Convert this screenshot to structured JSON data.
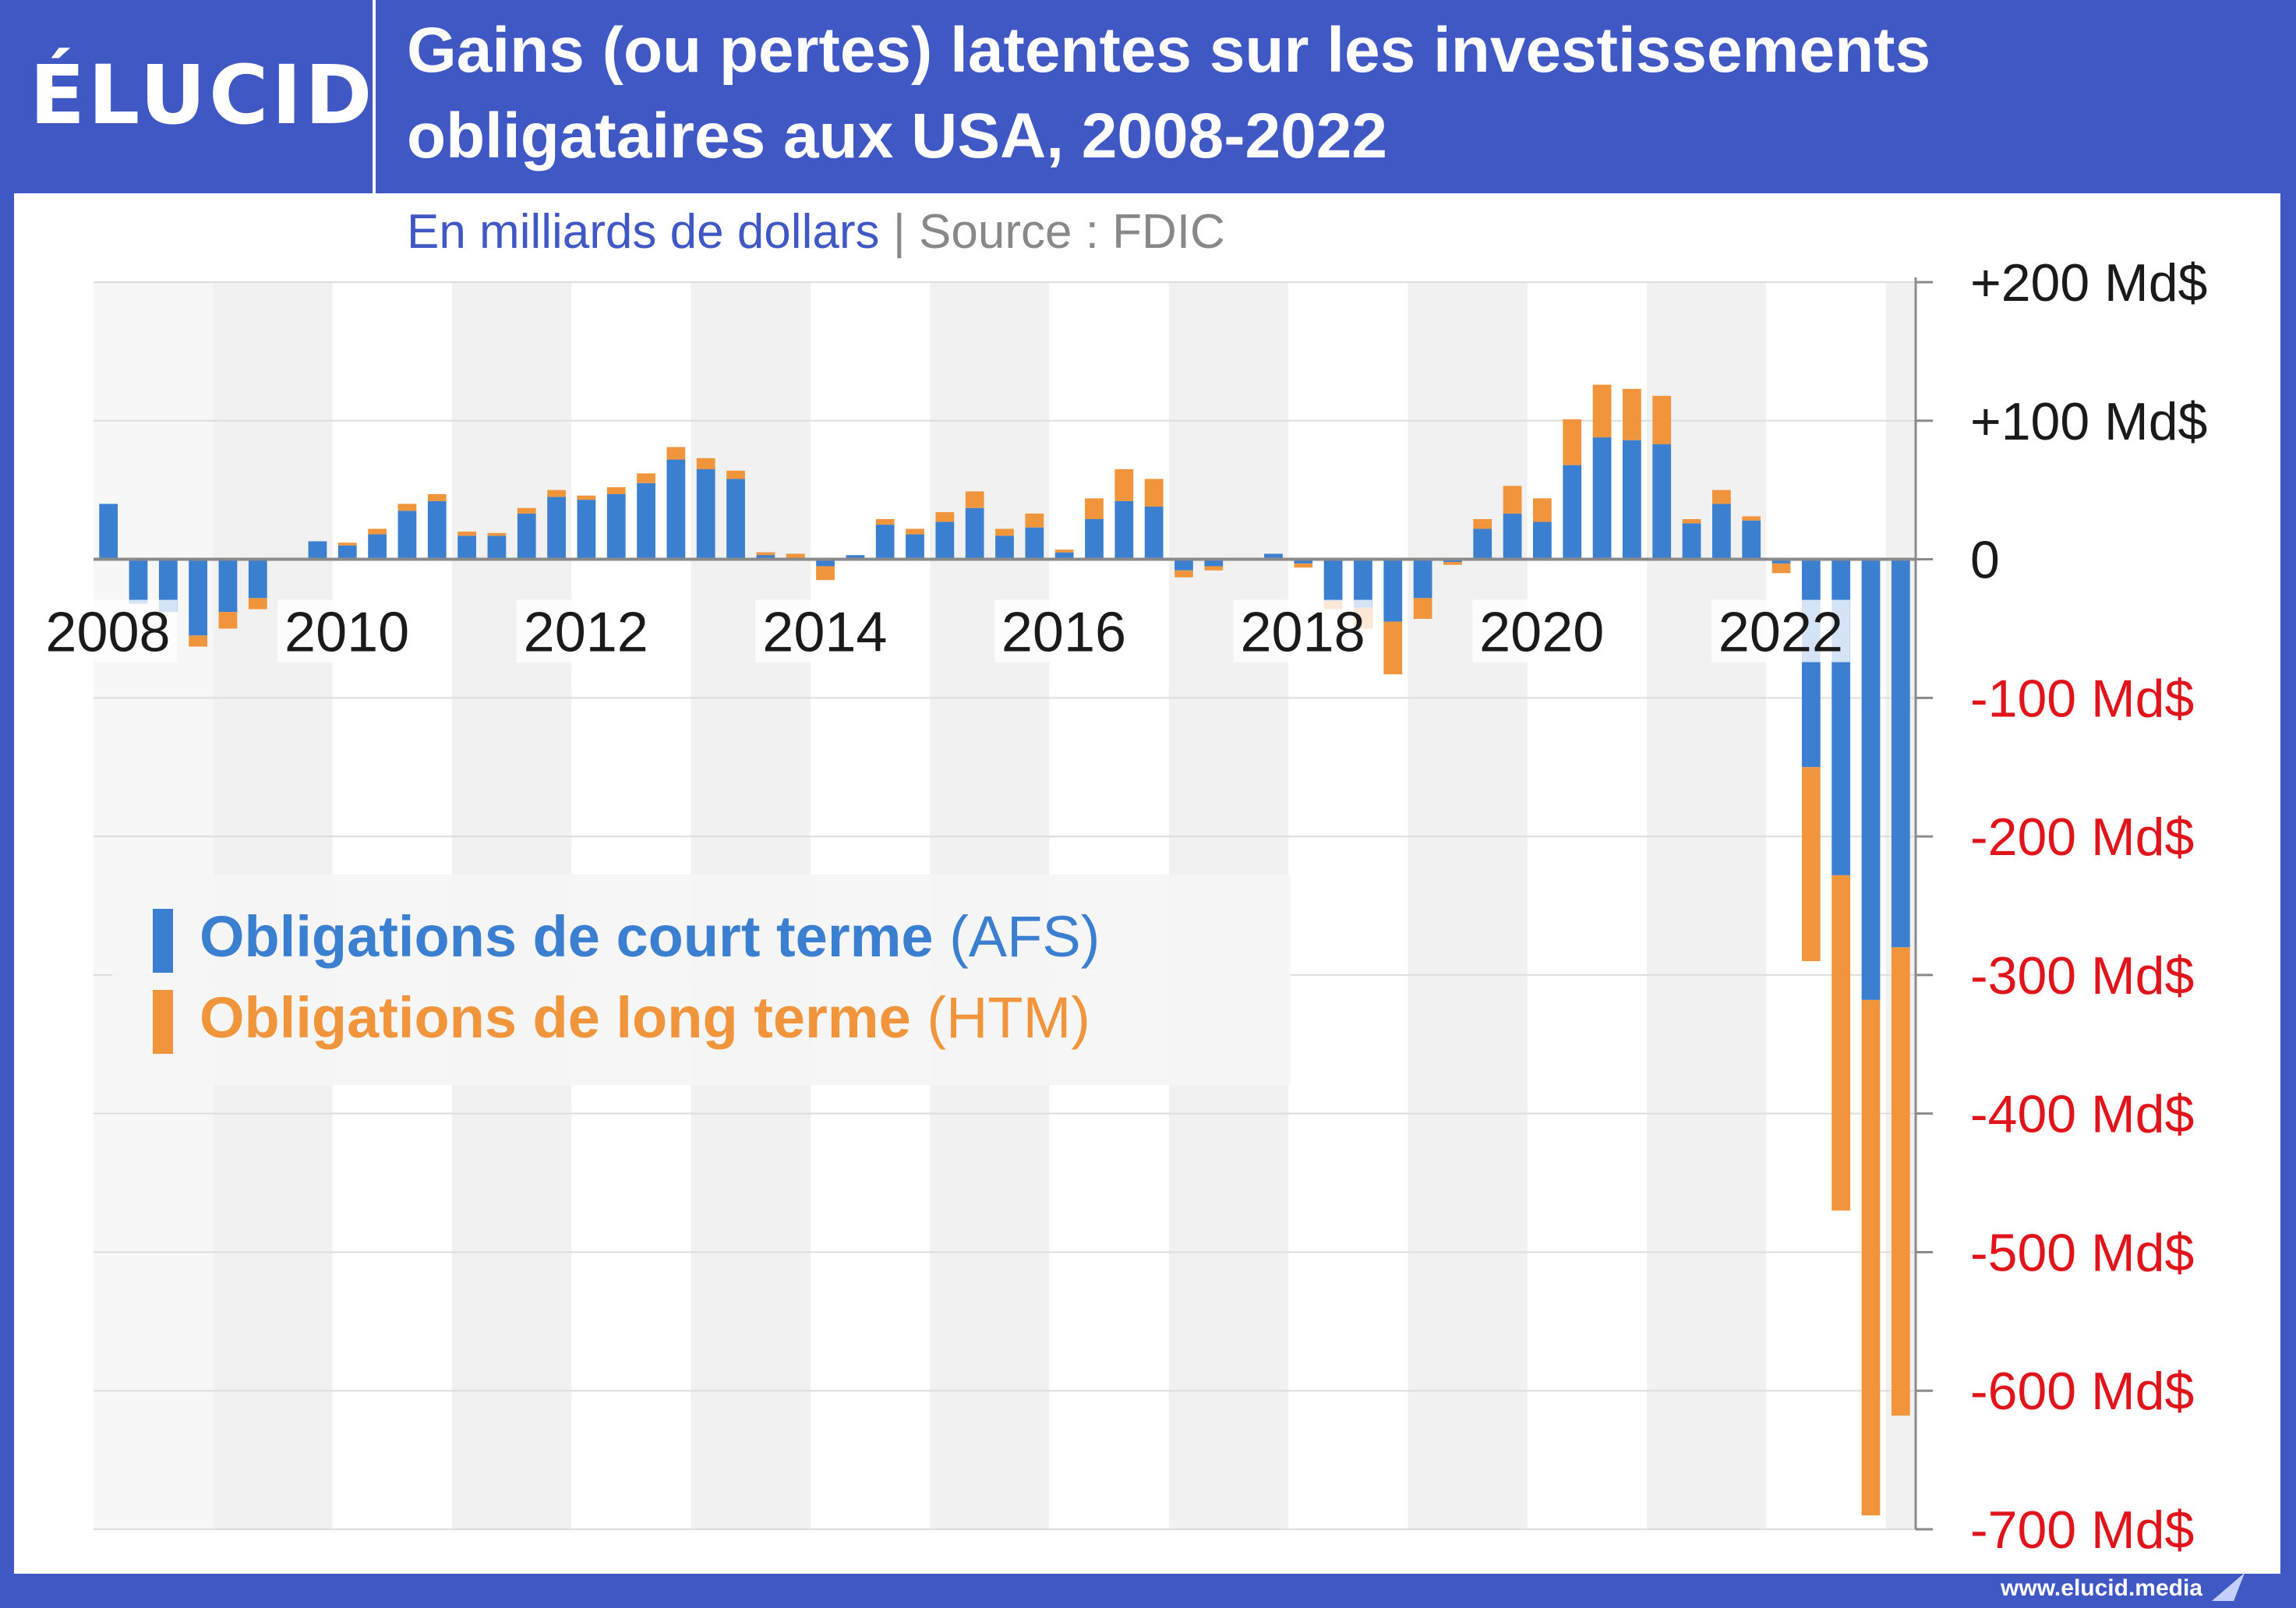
{
  "brand": {
    "logo_text": "ÉLUCID",
    "url": "www.elucid.media"
  },
  "header": {
    "title": "Gains (ou pertes) latentes sur les investissements obligataires aux USA, 2008-2022"
  },
  "subtitle": {
    "unit": "En milliards de dollars",
    "separator": "|",
    "source": "Source : FDIC"
  },
  "legend": {
    "items": [
      {
        "label": "Obligations de court terme",
        "code": "(AFS)",
        "color": "#3b7fd0"
      },
      {
        "label": "Obligations de long terme",
        "code": "(HTM)",
        "color": "#f0953c"
      }
    ]
  },
  "colors": {
    "afs": "#3b7fd0",
    "htm": "#f0953c",
    "positive_tick": "#1a1a1a",
    "negative_tick": "#e0151b",
    "band": "#f1f1f1",
    "brand_blue": "#3f58c4"
  },
  "chart_data": {
    "type": "bar",
    "stacked": true,
    "x_unit": "quarter",
    "x_start": "2008-Q1",
    "x_end": "2023-Q1",
    "ylim": [
      -700,
      200
    ],
    "grid": true,
    "legend_position": "middle-left",
    "y_ticks": [
      {
        "value": 200,
        "label": "+200 Md$"
      },
      {
        "value": 100,
        "label": "+100 Md$"
      },
      {
        "value": 0,
        "label": "0"
      },
      {
        "value": -100,
        "label": "-100 Md$"
      },
      {
        "value": -200,
        "label": "-200 Md$"
      },
      {
        "value": -300,
        "label": "-300 Md$"
      },
      {
        "value": -400,
        "label": "-400 Md$"
      },
      {
        "value": -500,
        "label": "-500 Md$"
      },
      {
        "value": -600,
        "label": "-600 Md$"
      },
      {
        "value": -700,
        "label": "-700 Md$"
      }
    ],
    "x_tick_labels": [
      "2008",
      "2010",
      "2012",
      "2014",
      "2016",
      "2018",
      "2020",
      "2022"
    ],
    "categories": [
      "2008-Q1",
      "2008-Q2",
      "2008-Q3",
      "2008-Q4",
      "2009-Q1",
      "2009-Q2",
      "2009-Q3",
      "2009-Q4",
      "2010-Q1",
      "2010-Q2",
      "2010-Q3",
      "2010-Q4",
      "2011-Q1",
      "2011-Q2",
      "2011-Q3",
      "2011-Q4",
      "2012-Q1",
      "2012-Q2",
      "2012-Q3",
      "2012-Q4",
      "2013-Q1",
      "2013-Q2",
      "2013-Q3",
      "2013-Q4",
      "2014-Q1",
      "2014-Q2",
      "2014-Q3",
      "2014-Q4",
      "2015-Q1",
      "2015-Q2",
      "2015-Q3",
      "2015-Q4",
      "2016-Q1",
      "2016-Q2",
      "2016-Q3",
      "2016-Q4",
      "2017-Q1",
      "2017-Q2",
      "2017-Q3",
      "2017-Q4",
      "2018-Q1",
      "2018-Q2",
      "2018-Q3",
      "2018-Q4",
      "2019-Q1",
      "2019-Q2",
      "2019-Q3",
      "2019-Q4",
      "2020-Q1",
      "2020-Q2",
      "2020-Q3",
      "2020-Q4",
      "2021-Q1",
      "2021-Q2",
      "2021-Q3",
      "2021-Q4",
      "2022-Q1",
      "2022-Q2",
      "2022-Q3",
      "2022-Q4",
      "2023-Q1"
    ],
    "series": [
      {
        "name": "Obligations de court terme (AFS)",
        "values": [
          40,
          -32,
          -38,
          -55,
          -38,
          -28,
          0,
          13,
          10,
          18,
          35,
          42,
          17,
          17,
          33,
          45,
          43,
          47,
          55,
          72,
          65,
          58,
          5,
          4,
          -5,
          3,
          25,
          18,
          27,
          37,
          17,
          23,
          5,
          29,
          42,
          38,
          -8,
          -5,
          0,
          4,
          -3,
          -30,
          -35,
          -45,
          -28,
          -2,
          22,
          33,
          27,
          68,
          88,
          86,
          83,
          26,
          40,
          28,
          -3,
          -150,
          -228,
          -318,
          -280
        ]
      },
      {
        "name": "Obligations de long terme (HTM)",
        "values": [
          0,
          0,
          0,
          -8,
          -12,
          -8,
          0,
          0,
          2,
          4,
          5,
          5,
          3,
          2,
          4,
          5,
          3,
          5,
          7,
          9,
          8,
          6,
          -2,
          -3,
          -10,
          0,
          4,
          4,
          7,
          12,
          5,
          10,
          2,
          15,
          23,
          20,
          -5,
          -3,
          0,
          0,
          -3,
          -6,
          -15,
          -38,
          -15,
          -2,
          7,
          20,
          17,
          33,
          38,
          37,
          35,
          3,
          10,
          3,
          -7,
          -140,
          -242,
          -372,
          -338
        ]
      }
    ]
  }
}
